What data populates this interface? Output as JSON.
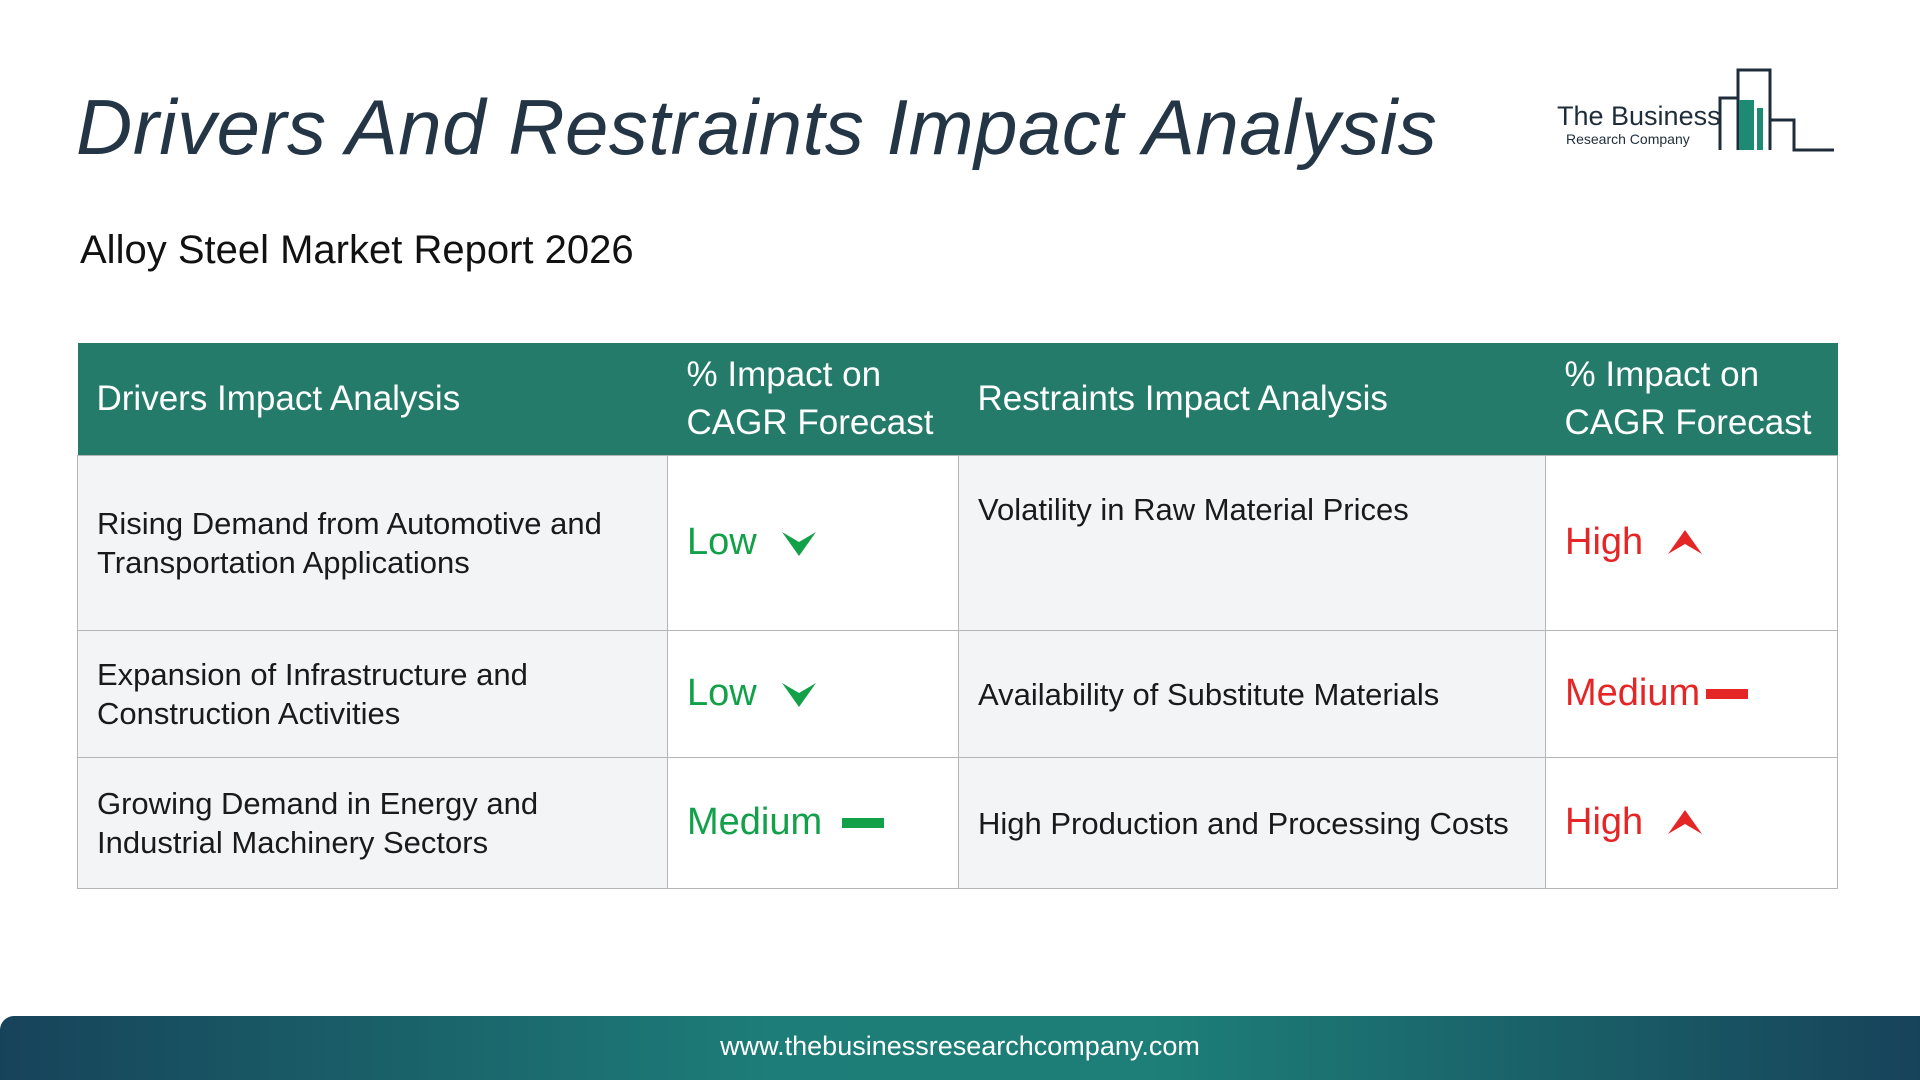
{
  "page": {
    "title": "Drivers And Restraints Impact Analysis",
    "subtitle": "Alloy Steel Market Report 2026"
  },
  "logo": {
    "name": "The Business",
    "tagline": "Research Company",
    "color": "#1d8a73"
  },
  "table": {
    "headers": [
      "Drivers Impact Analysis",
      "% Impact on CAGR Forecast",
      "Restraints Impact Analysis",
      "% Impact on CAGR Forecast"
    ],
    "rows": [
      {
        "driver": "Rising Demand from Automotive and Transportation Applications",
        "driver_impact": "Low",
        "driver_trend": "down",
        "restraint": "Volatility in Raw Material Prices",
        "restraint_impact": "High",
        "restraint_trend": "up"
      },
      {
        "driver": "Expansion of Infrastructure and Construction Activities",
        "driver_impact": "Low",
        "driver_trend": "down",
        "restraint": "Availability of Substitute Materials",
        "restraint_impact": "Medium",
        "restraint_trend": "flat"
      },
      {
        "driver": "Growing Demand in Energy and Industrial Machinery Sectors",
        "driver_impact": "Medium",
        "driver_trend": "flat",
        "restraint": "High Production and Processing Costs",
        "restraint_impact": "High",
        "restraint_trend": "up"
      }
    ]
  },
  "colors": {
    "header_bg": "#257b6a",
    "driver_impact": "#12a049",
    "restraint_impact": "#e52626",
    "title": "#243545"
  },
  "footer": {
    "url": "www.thebusinessresearchcompany.com"
  }
}
